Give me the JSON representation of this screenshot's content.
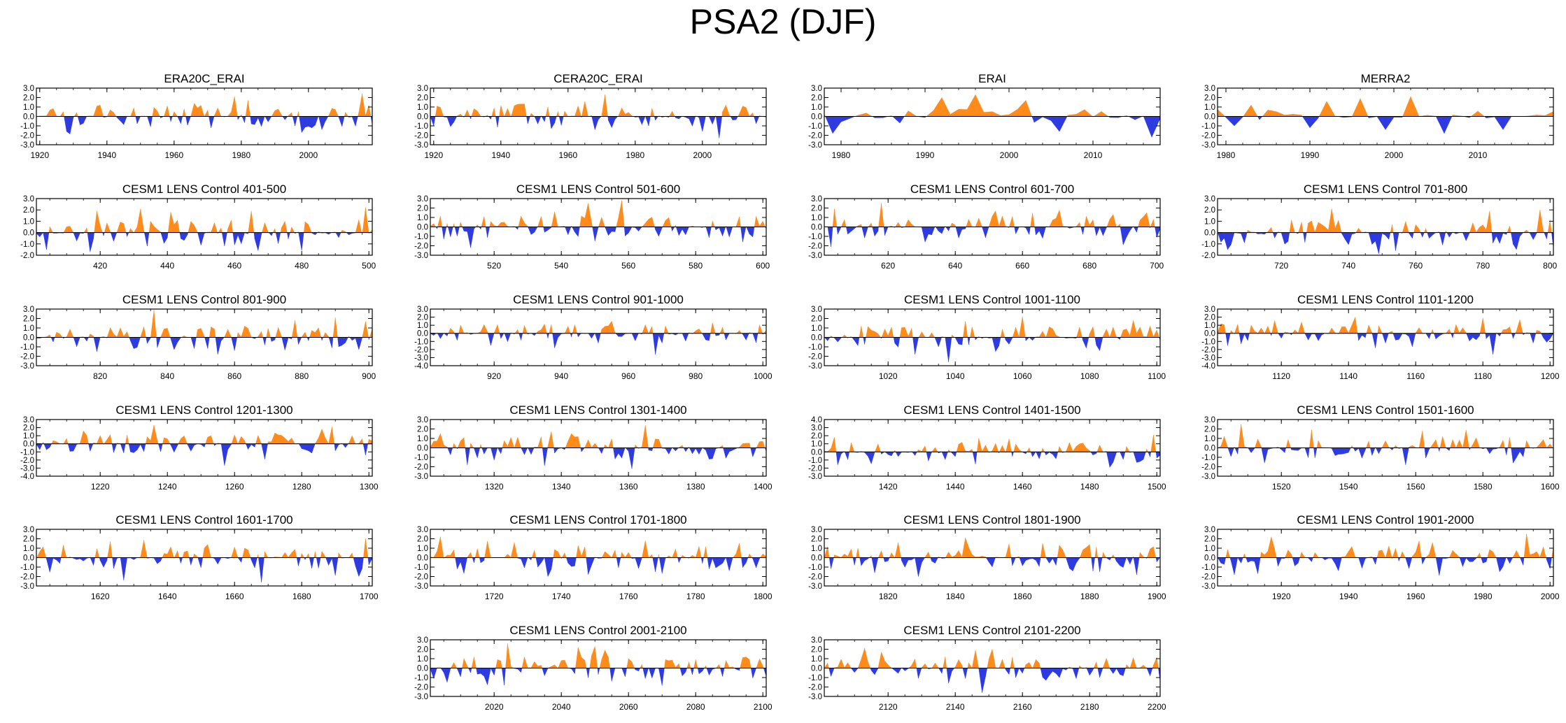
{
  "title": "PSA2 (DJF)",
  "colors": {
    "positive": "#ff8c1a",
    "negative": "#2d3be0",
    "axis": "#000000"
  },
  "chart_data": [
    {
      "type": "area",
      "title": "ERA20C_ERAI",
      "x_range": [
        1919,
        2019
      ],
      "x_ticks": [
        "1920",
        "1940",
        "1960",
        "1980",
        "2000"
      ],
      "y_range": [
        -3,
        3
      ],
      "y_ticks": [
        "3.0",
        "2.0",
        "1.0",
        "0.0",
        "-1.0",
        "-2.0",
        "-3.0"
      ],
      "seed": 11,
      "peaks": [
        [
          1937,
          1.1
        ],
        [
          1948,
          0.9
        ],
        [
          1978,
          2.1
        ],
        [
          1982,
          1.7
        ],
        [
          2016,
          2.4
        ],
        [
          1928,
          -1.6
        ],
        [
          1996,
          -1.0
        ],
        [
          2004,
          -1.4
        ]
      ]
    },
    {
      "type": "area",
      "title": "CERA20C_ERAI",
      "x_range": [
        1919,
        2019
      ],
      "x_ticks": [
        "1920",
        "1940",
        "1960",
        "1980",
        "2000"
      ],
      "y_range": [
        -3,
        3
      ],
      "y_ticks": [
        "3.0",
        "2.0",
        "1.0",
        "0.0",
        "-1.0",
        "-2.0",
        "-3.0"
      ],
      "seed": 23,
      "peaks": [
        [
          1971,
          2.3
        ],
        [
          1965,
          1.6
        ],
        [
          2012,
          1.1
        ],
        [
          1945,
          1.3
        ],
        [
          2005,
          -2.3
        ],
        [
          2000,
          -1.6
        ],
        [
          1955,
          -1.3
        ],
        [
          1984,
          -1.0
        ]
      ]
    },
    {
      "type": "area",
      "title": "ERAI",
      "x_range": [
        1978,
        2018
      ],
      "x_ticks": [
        "1980",
        "1990",
        "2000",
        "2010"
      ],
      "y_range": [
        -3,
        3
      ],
      "y_ticks": [
        "3.0",
        "2.0",
        "1.0",
        "0.0",
        "-1.0",
        "-2.0",
        "-3.0"
      ],
      "seed": 37,
      "sparse": true,
      "peaks": [
        [
          1992,
          2.0
        ],
        [
          1996,
          2.3
        ],
        [
          2002,
          1.7
        ],
        [
          1979,
          -1.8
        ],
        [
          2006,
          -1.6
        ],
        [
          2017,
          -2.2
        ],
        [
          1987,
          -0.7
        ]
      ]
    },
    {
      "type": "area",
      "title": "MERRA2",
      "x_range": [
        1979,
        2019
      ],
      "x_ticks": [
        "1980",
        "1990",
        "2000",
        "2010"
      ],
      "y_range": [
        -3,
        3
      ],
      "y_ticks": [
        "3.0",
        "2.0",
        "1.0",
        "0.0",
        "-1.0",
        "-2.0",
        "-3.0"
      ],
      "seed": 41,
      "sparse": true,
      "peaks": [
        [
          1983,
          1.2
        ],
        [
          1992,
          1.6
        ],
        [
          1996,
          1.9
        ],
        [
          2002,
          2.1
        ],
        [
          1990,
          -1.2
        ],
        [
          1999,
          -1.4
        ],
        [
          2006,
          -1.8
        ],
        [
          2013,
          -1.4
        ],
        [
          1981,
          -1.0
        ]
      ]
    },
    {
      "type": "area",
      "title": "CESM1 LENS Control 401-500",
      "x_range": [
        401,
        501
      ],
      "x_ticks": [
        "420",
        "440",
        "460",
        "480",
        "500"
      ],
      "y_range": [
        -2,
        3
      ],
      "y_ticks": [
        "3.0",
        "2.0",
        "1.0",
        "0.0",
        "-1.0",
        "-2.0"
      ],
      "seed": 53,
      "peaks": [
        [
          419,
          1.9
        ],
        [
          432,
          2.1
        ],
        [
          441,
          1.8
        ],
        [
          465,
          1.9
        ],
        [
          499,
          2.2
        ],
        [
          404,
          -1.5
        ],
        [
          467,
          -1.6
        ],
        [
          480,
          -1.6
        ]
      ]
    },
    {
      "type": "area",
      "title": "CESM1 LENS Control 501-600",
      "x_range": [
        501,
        601
      ],
      "x_ticks": [
        "520",
        "540",
        "560",
        "580",
        "600"
      ],
      "y_range": [
        -3,
        3
      ],
      "y_ticks": [
        "3.0",
        "2.0",
        "1.0",
        "0.0",
        "-1.0",
        "-2.0",
        "-3.0"
      ],
      "seed": 61,
      "peaks": [
        [
          548,
          2.5
        ],
        [
          558,
          2.8
        ],
        [
          538,
          1.6
        ],
        [
          505,
          -1.3
        ],
        [
          513,
          -2.2
        ],
        [
          550,
          -1.5
        ],
        [
          594,
          -1.6
        ]
      ]
    },
    {
      "type": "area",
      "title": "CESM1 LENS Control 601-700",
      "x_range": [
        601,
        701
      ],
      "x_ticks": [
        "620",
        "640",
        "660",
        "680",
        "700"
      ],
      "y_range": [
        -3,
        3
      ],
      "y_ticks": [
        "3.0",
        "2.0",
        "1.0",
        "0.0",
        "-1.0",
        "-2.0",
        "-3.0"
      ],
      "seed": 71,
      "peaks": [
        [
          618,
          2.5
        ],
        [
          604,
          1.9
        ],
        [
          652,
          1.7
        ],
        [
          697,
          1.5
        ],
        [
          603,
          -2.1
        ],
        [
          631,
          -1.6
        ],
        [
          666,
          -1.2
        ],
        [
          690,
          -1.9
        ]
      ]
    },
    {
      "type": "area",
      "title": "CESM1 LENS Control 701-800",
      "x_range": [
        701,
        801
      ],
      "x_ticks": [
        "720",
        "740",
        "760",
        "780",
        "800"
      ],
      "y_range": [
        -2,
        3
      ],
      "y_ticks": [
        "3.0",
        "2.0",
        "1.0",
        "0.0",
        "-1.0",
        "-2.0"
      ],
      "seed": 83,
      "peaks": [
        [
          735,
          2.1
        ],
        [
          782,
          1.9
        ],
        [
          797,
          2.0
        ],
        [
          704,
          -1.5
        ],
        [
          754,
          -1.6
        ],
        [
          768,
          -1.1
        ],
        [
          790,
          -1.5
        ]
      ]
    },
    {
      "type": "area",
      "title": "CESM1 LENS Control 801-900",
      "x_range": [
        801,
        901
      ],
      "x_ticks": [
        "820",
        "840",
        "860",
        "880",
        "900"
      ],
      "y_range": [
        -3,
        3
      ],
      "y_ticks": [
        "3.0",
        "2.0",
        "1.0",
        "0.0",
        "-1.0",
        "-2.0",
        "-3.0"
      ],
      "seed": 97,
      "peaks": [
        [
          836,
          2.9
        ],
        [
          878,
          1.8
        ],
        [
          890,
          2.1
        ],
        [
          819,
          -1.5
        ],
        [
          855,
          -1.8
        ],
        [
          842,
          -1.3
        ],
        [
          897,
          -1.3
        ]
      ]
    },
    {
      "type": "area",
      "title": "CESM1 LENS Control 901-1000",
      "x_range": [
        901,
        1001
      ],
      "x_ticks": [
        "920",
        "940",
        "960",
        "980",
        "1000"
      ],
      "y_range": [
        -4,
        3
      ],
      "y_ticks": [
        "3.0",
        "2.0",
        "1.0",
        "0.0",
        "-1.0",
        "-2.0",
        "-3.0",
        "-4.0"
      ],
      "seed": 101,
      "peaks": [
        [
          938,
          1.9
        ],
        [
          955,
          1.5
        ],
        [
          985,
          1.3
        ],
        [
          919,
          -1.5
        ],
        [
          938,
          -1.8
        ],
        [
          968,
          -2.6
        ],
        [
          951,
          -1.2
        ]
      ]
    },
    {
      "type": "area",
      "title": "CESM1 LENS Control 1001-1100",
      "x_range": [
        1001,
        1101
      ],
      "x_ticks": [
        "1020",
        "1040",
        "1060",
        "1080",
        "1100"
      ],
      "y_range": [
        -3,
        3
      ],
      "y_ticks": [
        "3.0",
        "2.0",
        "1.0",
        "0.0",
        "-1.0",
        "-2.0",
        "-3.0"
      ],
      "seed": 113,
      "peaks": [
        [
          1060,
          2.2
        ],
        [
          1043,
          1.7
        ],
        [
          1093,
          1.8
        ],
        [
          1028,
          -1.8
        ],
        [
          1038,
          -2.6
        ],
        [
          1052,
          -1.5
        ],
        [
          1083,
          -1.4
        ]
      ]
    },
    {
      "type": "area",
      "title": "CESM1 LENS Control 1101-1200",
      "x_range": [
        1101,
        1201
      ],
      "x_ticks": [
        "1120",
        "1140",
        "1160",
        "1180",
        "1200"
      ],
      "y_range": [
        -4,
        3
      ],
      "y_ticks": [
        "3.0",
        "2.0",
        "1.0",
        "0.0",
        "-1.0",
        "-2.0",
        "-3.0",
        "-4.0"
      ],
      "seed": 127,
      "peaks": [
        [
          1142,
          2.0
        ],
        [
          1180,
          1.9
        ],
        [
          1126,
          1.4
        ],
        [
          1148,
          -1.8
        ],
        [
          1183,
          -2.6
        ],
        [
          1195,
          -1.2
        ],
        [
          1108,
          -1.3
        ]
      ]
    },
    {
      "type": "area",
      "title": "CESM1 LENS Control 1201-1300",
      "x_range": [
        1201,
        1301
      ],
      "x_ticks": [
        "1220",
        "1240",
        "1260",
        "1280",
        "1300"
      ],
      "y_range": [
        -4,
        3
      ],
      "y_ticks": [
        "3.0",
        "2.0",
        "1.0",
        "0.0",
        "-1.0",
        "-2.0",
        "-3.0",
        "-4.0"
      ],
      "seed": 131,
      "peaks": [
        [
          1236,
          2.3
        ],
        [
          1289,
          2.1
        ],
        [
          1215,
          1.6
        ],
        [
          1257,
          -2.7
        ],
        [
          1269,
          -1.9
        ],
        [
          1299,
          -1.4
        ],
        [
          1230,
          -1.1
        ]
      ]
    },
    {
      "type": "area",
      "title": "CESM1 LENS Control 1301-1400",
      "x_range": [
        1301,
        1401
      ],
      "x_ticks": [
        "1320",
        "1340",
        "1360",
        "1380",
        "1400"
      ],
      "y_range": [
        -3,
        3
      ],
      "y_ticks": [
        "3.0",
        "2.0",
        "1.0",
        "0.0",
        "-1.0",
        "-2.0",
        "-3.0"
      ],
      "seed": 139,
      "peaks": [
        [
          1365,
          2.4
        ],
        [
          1343,
          1.5
        ],
        [
          1304,
          1.5
        ],
        [
          1335,
          -1.9
        ],
        [
          1361,
          -2.2
        ],
        [
          1389,
          -1.1
        ],
        [
          1320,
          -1.3
        ]
      ]
    },
    {
      "type": "area",
      "title": "CESM1 LENS Control 1401-1500",
      "x_range": [
        1401,
        1501
      ],
      "x_ticks": [
        "1420",
        "1440",
        "1460",
        "1480",
        "1500"
      ],
      "y_range": [
        -3,
        4
      ],
      "y_ticks": [
        "4.0",
        "3.0",
        "2.0",
        "1.0",
        "0.0",
        "-1.0",
        "-2.0",
        "-3.0"
      ],
      "seed": 149,
      "peaks": [
        [
          1404,
          1.8
        ],
        [
          1447,
          1.7
        ],
        [
          1499,
          2.1
        ],
        [
          1456,
          1.6
        ],
        [
          1405,
          -1.6
        ],
        [
          1446,
          -1.5
        ],
        [
          1486,
          -1.9
        ],
        [
          1494,
          -1.3
        ]
      ]
    },
    {
      "type": "area",
      "title": "CESM1 LENS Control 1501-1600",
      "x_range": [
        1501,
        1601
      ],
      "x_ticks": [
        "1520",
        "1540",
        "1560",
        "1580",
        "1600"
      ],
      "y_range": [
        -3,
        3
      ],
      "y_ticks": [
        "3.0",
        "2.0",
        "1.0",
        "0.0",
        "-1.0",
        "-2.0",
        "-3.0"
      ],
      "seed": 157,
      "peaks": [
        [
          1508,
          2.5
        ],
        [
          1529,
          1.9
        ],
        [
          1562,
          1.8
        ],
        [
          1575,
          1.9
        ],
        [
          1515,
          -1.6
        ],
        [
          1557,
          -1.8
        ],
        [
          1589,
          -1.6
        ]
      ]
    },
    {
      "type": "area",
      "title": "CESM1 LENS Control 1601-1700",
      "x_range": [
        1601,
        1701
      ],
      "x_ticks": [
        "1620",
        "1640",
        "1660",
        "1680",
        "1700"
      ],
      "y_range": [
        -3,
        3
      ],
      "y_ticks": [
        "3.0",
        "2.0",
        "1.0",
        "0.0",
        "-1.0",
        "-2.0",
        "-3.0"
      ],
      "seed": 163,
      "peaks": [
        [
          1699,
          2.0
        ],
        [
          1652,
          1.4
        ],
        [
          1609,
          1.3
        ],
        [
          1627,
          -2.4
        ],
        [
          1668,
          -2.6
        ],
        [
          1690,
          -1.9
        ],
        [
          1697,
          -2.0
        ]
      ]
    },
    {
      "type": "area",
      "title": "CESM1 LENS Control 1701-1800",
      "x_range": [
        1701,
        1801
      ],
      "x_ticks": [
        "1720",
        "1740",
        "1760",
        "1780",
        "1800"
      ],
      "y_range": [
        -3,
        3
      ],
      "y_ticks": [
        "3.0",
        "2.0",
        "1.0",
        "0.0",
        "-1.0",
        "-2.0",
        "-3.0"
      ],
      "seed": 173,
      "peaks": [
        [
          1704,
          2.2
        ],
        [
          1765,
          1.8
        ],
        [
          1726,
          1.6
        ],
        [
          1736,
          -2.0
        ],
        [
          1768,
          -1.5
        ],
        [
          1790,
          -1.4
        ],
        [
          1709,
          -1.2
        ]
      ]
    },
    {
      "type": "area",
      "title": "CESM1 LENS Control 1801-1900",
      "x_range": [
        1801,
        1901
      ],
      "x_ticks": [
        "1820",
        "1840",
        "1860",
        "1880",
        "1900"
      ],
      "y_range": [
        -3,
        3
      ],
      "y_ticks": [
        "3.0",
        "2.0",
        "1.0",
        "0.0",
        "-1.0",
        "-2.0",
        "-3.0"
      ],
      "seed": 181,
      "peaks": [
        [
          1843,
          2.1
        ],
        [
          1823,
          1.6
        ],
        [
          1866,
          1.5
        ],
        [
          1816,
          -1.6
        ],
        [
          1829,
          -2.0
        ],
        [
          1883,
          -1.5
        ],
        [
          1894,
          -1.8
        ]
      ]
    },
    {
      "type": "area",
      "title": "CESM1 LENS Control 1901-2000",
      "x_range": [
        1901,
        2001
      ],
      "x_ticks": [
        "1920",
        "1940",
        "1960",
        "1980",
        "2000"
      ],
      "y_range": [
        -3,
        3
      ],
      "y_ticks": [
        "3.0",
        "2.0",
        "1.0",
        "0.0",
        "-1.0",
        "-2.0",
        "-3.0"
      ],
      "seed": 191,
      "peaks": [
        [
          1917,
          2.2
        ],
        [
          1993,
          2.5
        ],
        [
          1965,
          1.6
        ],
        [
          1906,
          -1.8
        ],
        [
          1913,
          -1.7
        ],
        [
          1937,
          -1.4
        ],
        [
          1985,
          -1.5
        ]
      ]
    },
    {
      "type": "area",
      "title": "CESM1 LENS Control 2001-2100",
      "x_range": [
        2001,
        2101
      ],
      "x_ticks": [
        "2020",
        "2040",
        "2060",
        "2080",
        "2100"
      ],
      "y_range": [
        -3,
        3
      ],
      "y_ticks": [
        "3.0",
        "2.0",
        "1.0",
        "0.0",
        "-1.0",
        "-2.0",
        "-3.0"
      ],
      "seed": 197,
      "peaks": [
        [
          2024,
          2.6
        ],
        [
          2045,
          2.2
        ],
        [
          2050,
          2.3
        ],
        [
          2053,
          1.9
        ],
        [
          2006,
          -1.5
        ],
        [
          2023,
          -1.8
        ],
        [
          2055,
          -1.4
        ],
        [
          2065,
          -1.1
        ]
      ]
    },
    {
      "type": "area",
      "title": "CESM1 LENS Control 2101-2200",
      "x_range": [
        2101,
        2201
      ],
      "x_ticks": [
        "2120",
        "2140",
        "2160",
        "2180",
        "2200"
      ],
      "y_range": [
        -3,
        3
      ],
      "y_ticks": [
        "3.0",
        "2.0",
        "1.0",
        "0.0",
        "-1.0",
        "-2.0",
        "-3.0"
      ],
      "seed": 211,
      "peaks": [
        [
          2113,
          2.1
        ],
        [
          2118,
          1.7
        ],
        [
          2146,
          1.9
        ],
        [
          2151,
          2.0
        ],
        [
          2138,
          -1.6
        ],
        [
          2148,
          -2.6
        ],
        [
          2167,
          -1.3
        ]
      ]
    }
  ]
}
